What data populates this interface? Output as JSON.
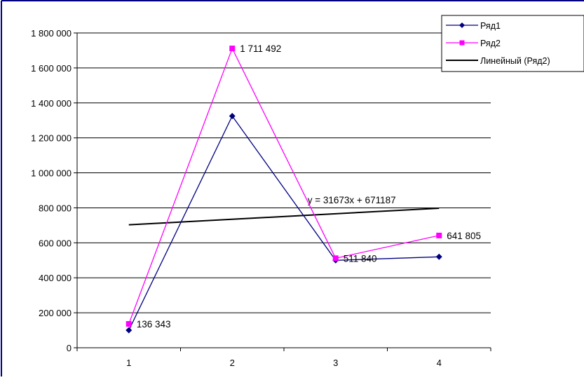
{
  "chart_data": {
    "type": "line",
    "x": [
      1,
      2,
      3,
      4
    ],
    "categories": [
      "1",
      "2",
      "3",
      "4"
    ],
    "ylim": [
      0,
      1800000
    ],
    "yticks": [
      0,
      200000,
      400000,
      600000,
      800000,
      1000000,
      1200000,
      1400000,
      1600000,
      1800000
    ],
    "ytick_labels": [
      "0",
      "200 000",
      "400 000",
      "600 000",
      "800 000",
      "1 000 000",
      "1 200 000",
      "1 400 000",
      "1 600 000",
      "1 800 000"
    ],
    "grid": true,
    "legend_position": "top-right",
    "series": [
      {
        "name": "Ряд1",
        "values": [
          100000,
          1325000,
          500000,
          520000
        ],
        "color": "#000080",
        "marker": "diamond"
      },
      {
        "name": "Ряд2",
        "values": [
          136343,
          1711492,
          511840,
          641805
        ],
        "color": "#ff00ff",
        "marker": "square",
        "data_labels": [
          "136 343",
          "1 711 492",
          "511 840",
          "641 805"
        ]
      }
    ],
    "trendline": {
      "name": "Линейный (Ряд2)",
      "slope": 31673,
      "intercept": 671187,
      "color": "#000000",
      "equation": "y = 31673x + 671187"
    }
  },
  "colors": {
    "frame_border": "#000080",
    "gridline": "#000000",
    "axis": "#000000"
  }
}
